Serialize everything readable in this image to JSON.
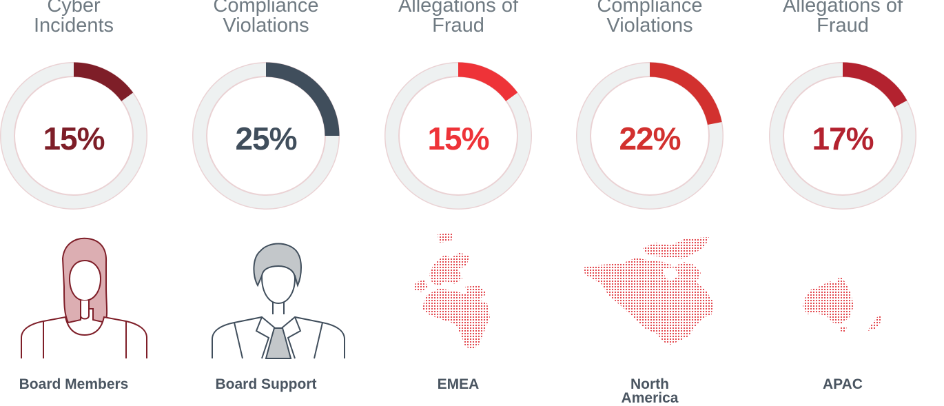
{
  "chart_data": {
    "type": "donut",
    "items": [
      {
        "title": [
          "Cyber",
          "Incidents"
        ],
        "value": 15,
        "value_label": "15%",
        "label": [
          "Board Members"
        ],
        "color": "#7e1e28",
        "icon": "woman-avatar-icon"
      },
      {
        "title": [
          "Compliance",
          "Violations"
        ],
        "value": 25,
        "value_label": "25%",
        "label": [
          "Board Support"
        ],
        "color": "#404e5c",
        "icon": "man-avatar-icon"
      },
      {
        "title": [
          "Allegations of",
          "Fraud"
        ],
        "value": 15,
        "value_label": "15%",
        "label": [
          "EMEA"
        ],
        "color": "#ee3338",
        "icon": "emea-map-icon"
      },
      {
        "title": [
          "Compliance",
          "Violations"
        ],
        "value": 22,
        "value_label": "22%",
        "label": [
          "North",
          "America"
        ],
        "color": "#d2312f",
        "icon": "north-america-map-icon"
      },
      {
        "title": [
          "Allegations of",
          "Fraud"
        ],
        "value": 17,
        "value_label": "17%",
        "label": [
          "APAC"
        ],
        "color": "#b3222f",
        "icon": "apac-map-icon"
      }
    ],
    "track_color": "#eef1f1",
    "track_outline_color": "#ead2d4"
  }
}
